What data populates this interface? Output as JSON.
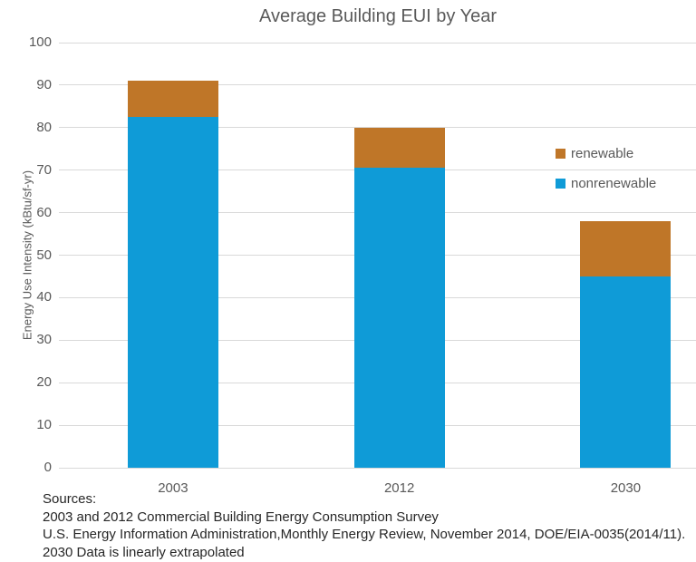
{
  "chart_data": {
    "type": "bar",
    "stacked": true,
    "title": "Average Building EUI by Year",
    "xlabel": "",
    "ylabel": "Energy Use Intensity (kBtu/sf-yr)",
    "categories": [
      "2003",
      "2012",
      "2030"
    ],
    "series": [
      {
        "name": "nonrenewable",
        "color": "#0F9BD7",
        "values": [
          82.5,
          70.5,
          45
        ]
      },
      {
        "name": "renewable",
        "color": "#BF7628",
        "values": [
          8.5,
          9.5,
          13
        ]
      }
    ],
    "legend_order": [
      "renewable",
      "nonrenewable"
    ],
    "legend_position": "right",
    "ylim": [
      0,
      100
    ],
    "ytick_step": 10,
    "grid": true
  },
  "colors": {
    "nonrenewable": "#0F9BD7",
    "renewable": "#BF7628",
    "axis_text": "#595959",
    "gridline": "#d9d9d9",
    "source_text": "#262626"
  },
  "footer": {
    "lines": [
      "Sources:",
      "2003 and 2012 Commercial Building Energy Consumption Survey",
      "U.S. Energy Information Administration,Monthly Energy Review, November 2014, DOE/EIA-0035(2014/11).",
      "2030 Data is linearly extrapolated"
    ]
  }
}
